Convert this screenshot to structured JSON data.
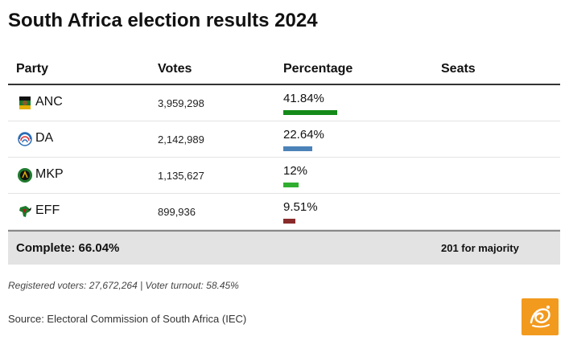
{
  "title": "South Africa election results 2024",
  "headers": {
    "party": "Party",
    "votes": "Votes",
    "percentage": "Percentage",
    "seats": "Seats"
  },
  "chart_data": {
    "type": "table",
    "title": "South Africa election results 2024",
    "columns": [
      "Party",
      "Votes",
      "Percentage",
      "Seats"
    ],
    "rows": [
      {
        "party": "ANC",
        "votes": "3,959,298",
        "pct_label": "41.84%",
        "value": 41.84,
        "color": "#158a1a",
        "icon": "anc-logo-icon"
      },
      {
        "party": "DA",
        "votes": "2,142,989",
        "pct_label": "22.64%",
        "value": 22.64,
        "color": "#4b83b8",
        "icon": "da-logo-icon"
      },
      {
        "party": "MKP",
        "votes": "1,135,627",
        "pct_label": "12%",
        "value": 12,
        "color": "#2fae2f",
        "icon": "mkp-logo-icon"
      },
      {
        "party": "EFF",
        "votes": "899,936",
        "pct_label": "9.51%",
        "value": 9.51,
        "color": "#8a2b2b",
        "icon": "eff-logo-icon"
      }
    ]
  },
  "footer": {
    "complete": "Complete: 66.04%",
    "majority": "201 for majority"
  },
  "note": "Registered voters: 27,672,264 | Voter turnout: 58.45%",
  "source": "Source: Electoral Commission of South Africa (IEC)",
  "logo": {
    "icon": "al-jazeera-logo-icon",
    "color": "#f29a1e"
  }
}
